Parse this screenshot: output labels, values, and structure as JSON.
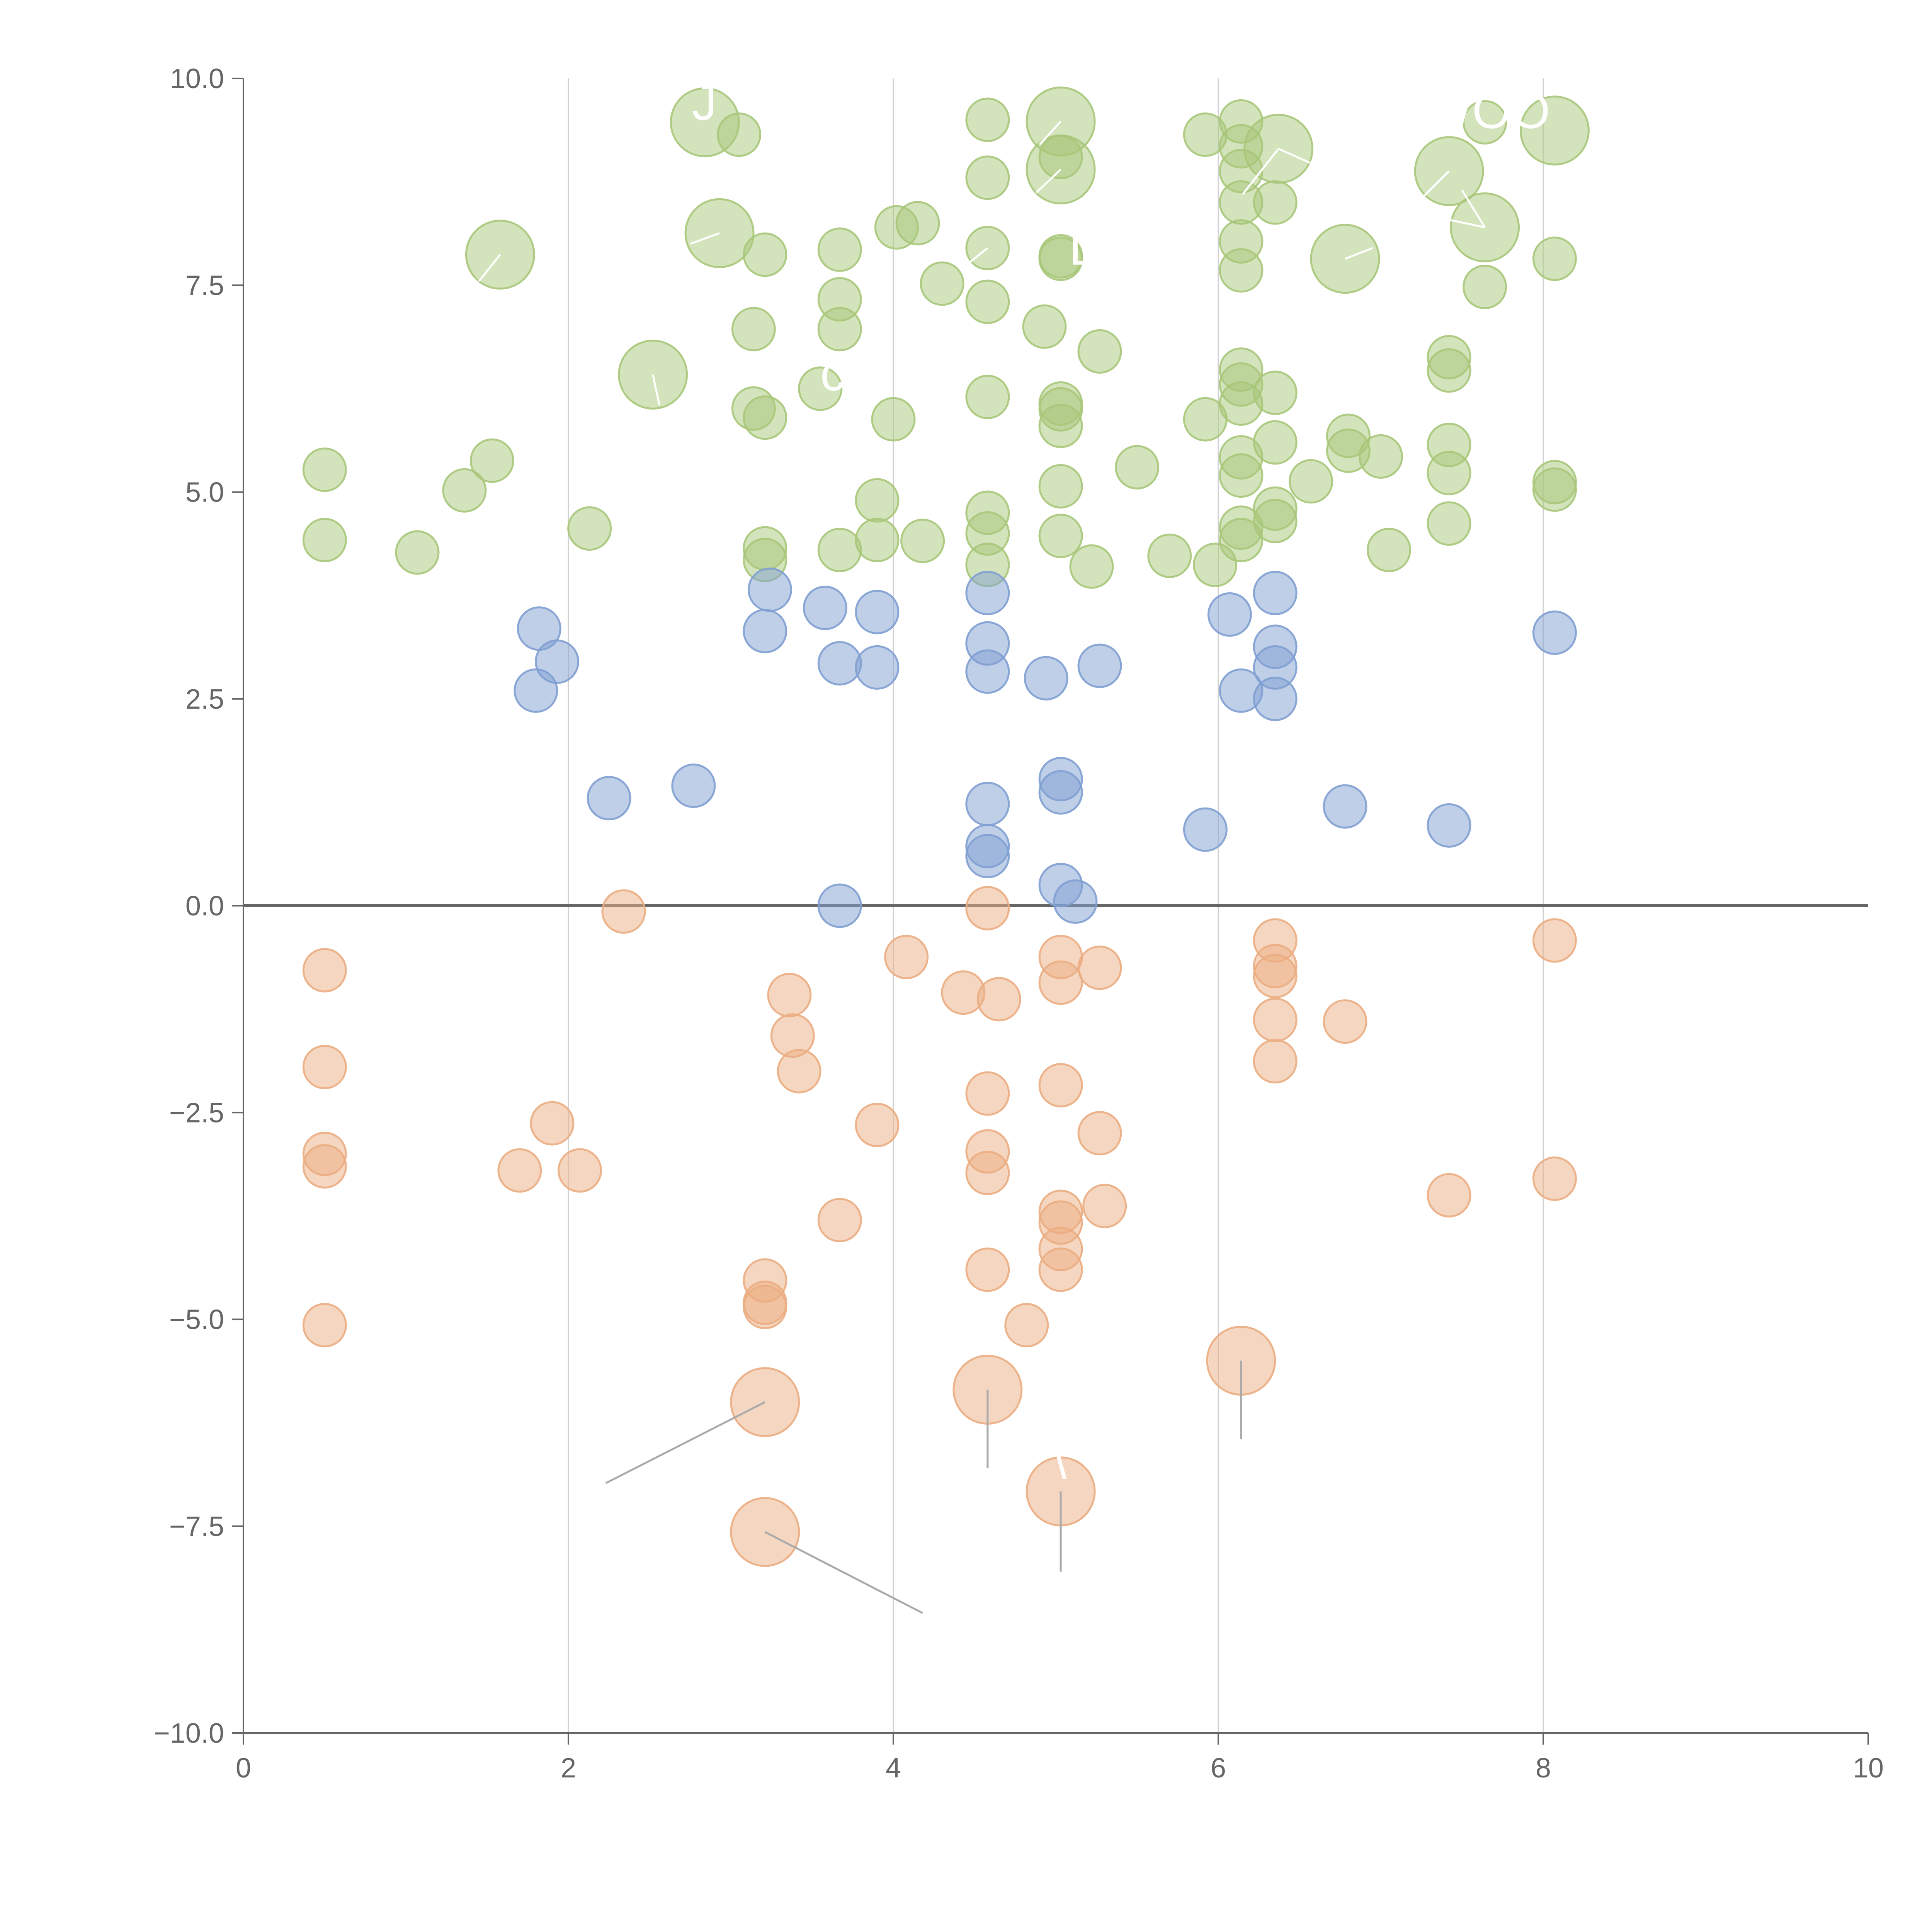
{
  "chart_data": {
    "type": "scatter",
    "title": "",
    "xlabel": "",
    "ylabel": "",
    "xlim": [
      0,
      10
    ],
    "ylim": [
      -10,
      10
    ],
    "x_ticks": [
      "0",
      "2",
      "4",
      "6",
      "8",
      "10"
    ],
    "y_ticks": [
      "10.0",
      "7.5",
      "5.0",
      "2.5",
      "0.0",
      "−2.5",
      "−5.0",
      "−7.5",
      "−10.0"
    ],
    "grid": "vertical lines at x ticks",
    "reference_line": 0,
    "series": [
      {
        "color": "#a8c77a",
        "points": [
          [
            1.58,
            7.87,
            1.6
          ],
          [
            2.52,
            6.42,
            1.6
          ],
          [
            2.93,
            8.13,
            1.6
          ],
          [
            2.84,
            9.47,
            1.6
          ],
          [
            5.03,
            9.48,
            1.6
          ],
          [
            5.03,
            8.9,
            1.6
          ],
          [
            6.37,
            9.15,
            1.6
          ],
          [
            7.42,
            8.88,
            1.6
          ],
          [
            7.64,
            8.2,
            1.6
          ],
          [
            8.07,
            9.37,
            1.6
          ],
          [
            6.78,
            7.82,
            1.6
          ],
          [
            0.5,
            5.27,
            1
          ],
          [
            0.5,
            4.42,
            1
          ],
          [
            1.07,
            4.27,
            1
          ],
          [
            1.36,
            5.02,
            1
          ],
          [
            1.53,
            5.38,
            1
          ],
          [
            2.13,
            4.56,
            1
          ],
          [
            3.05,
            9.32,
            1
          ],
          [
            3.14,
            6.97,
            1
          ],
          [
            3.14,
            6.01,
            1
          ],
          [
            3.21,
            5.9,
            1
          ],
          [
            3.21,
            7.87,
            1
          ],
          [
            3.21,
            4.32,
            1
          ],
          [
            3.21,
            4.18,
            1
          ],
          [
            3.55,
            6.25,
            1
          ],
          [
            3.67,
            7.93,
            1
          ],
          [
            3.67,
            7.33,
            1
          ],
          [
            3.67,
            6.97,
            1
          ],
          [
            3.67,
            4.3,
            1
          ],
          [
            3.9,
            4.9,
            1
          ],
          [
            3.9,
            4.42,
            1
          ],
          [
            4.0,
            5.88,
            1
          ],
          [
            4.02,
            8.2,
            1
          ],
          [
            4.15,
            8.25,
            1
          ],
          [
            4.18,
            4.41,
            1
          ],
          [
            4.3,
            7.52,
            1
          ],
          [
            4.58,
            9.5,
            1
          ],
          [
            4.58,
            8.8,
            1
          ],
          [
            4.58,
            7.95,
            1
          ],
          [
            4.58,
            7.3,
            1
          ],
          [
            4.58,
            6.15,
            1
          ],
          [
            4.58,
            4.75,
            1
          ],
          [
            4.58,
            4.5,
            1
          ],
          [
            4.58,
            4.12,
            1
          ],
          [
            4.93,
            7.0,
            1
          ],
          [
            5.03,
            7.85,
            1
          ],
          [
            5.03,
            7.82,
            1
          ],
          [
            5.03,
            6.07,
            1
          ],
          [
            5.03,
            6.0,
            1
          ],
          [
            5.03,
            5.8,
            1
          ],
          [
            5.03,
            5.07,
            1
          ],
          [
            5.03,
            4.47,
            1
          ],
          [
            5.03,
            9.05,
            1
          ],
          [
            5.22,
            4.1,
            1
          ],
          [
            5.27,
            6.7,
            1
          ],
          [
            5.5,
            5.3,
            1
          ],
          [
            5.7,
            4.23,
            1
          ],
          [
            5.92,
            5.88,
            1
          ],
          [
            5.92,
            9.32,
            1
          ],
          [
            5.98,
            4.12,
            1
          ],
          [
            6.14,
            9.48,
            1
          ],
          [
            6.14,
            9.18,
            1
          ],
          [
            6.14,
            8.88,
            1
          ],
          [
            6.14,
            8.5,
            1
          ],
          [
            6.14,
            8.03,
            1
          ],
          [
            6.14,
            7.68,
            1
          ],
          [
            6.14,
            6.48,
            1
          ],
          [
            6.14,
            6.3,
            1
          ],
          [
            6.14,
            6.07,
            1
          ],
          [
            6.14,
            5.42,
            1
          ],
          [
            6.14,
            5.2,
            1
          ],
          [
            6.14,
            4.57,
            1
          ],
          [
            6.14,
            4.42,
            1
          ],
          [
            6.35,
            8.5,
            1
          ],
          [
            6.35,
            6.2,
            1
          ],
          [
            6.35,
            5.6,
            1
          ],
          [
            6.35,
            4.8,
            1
          ],
          [
            6.35,
            4.65,
            1
          ],
          [
            6.57,
            5.13,
            1
          ],
          [
            6.8,
            5.68,
            1
          ],
          [
            6.8,
            5.5,
            1
          ],
          [
            7.0,
            5.43,
            1
          ],
          [
            7.05,
            4.3,
            1
          ],
          [
            7.42,
            6.63,
            1
          ],
          [
            7.42,
            6.47,
            1
          ],
          [
            7.42,
            5.57,
            1
          ],
          [
            7.42,
            5.23,
            1
          ],
          [
            7.42,
            4.62,
            1
          ],
          [
            7.64,
            7.48,
            1
          ],
          [
            7.64,
            9.47,
            1
          ],
          [
            8.07,
            7.82,
            1
          ],
          [
            8.07,
            5.12,
            1
          ],
          [
            8.07,
            5.03,
            1
          ]
        ]
      },
      {
        "color": "#7f9fd1",
        "points": [
          [
            1.82,
            3.35,
            1
          ],
          [
            1.8,
            2.6,
            1
          ],
          [
            1.93,
            2.95,
            1
          ],
          [
            2.25,
            1.3,
            1
          ],
          [
            2.77,
            1.45,
            1
          ],
          [
            3.21,
            3.32,
            1
          ],
          [
            3.24,
            3.82,
            1
          ],
          [
            3.58,
            3.6,
            1
          ],
          [
            3.67,
            2.93,
            1
          ],
          [
            3.67,
            0.0,
            1
          ],
          [
            3.9,
            3.55,
            1
          ],
          [
            3.9,
            2.88,
            1
          ],
          [
            4.58,
            3.78,
            1
          ],
          [
            4.58,
            3.17,
            1
          ],
          [
            4.58,
            2.83,
            1
          ],
          [
            4.58,
            1.23,
            1
          ],
          [
            4.58,
            0.72,
            1
          ],
          [
            4.58,
            0.6,
            1
          ],
          [
            4.94,
            2.75,
            1
          ],
          [
            5.03,
            1.53,
            1
          ],
          [
            5.03,
            1.37,
            1
          ],
          [
            5.03,
            0.25,
            1
          ],
          [
            5.12,
            0.05,
            1
          ],
          [
            5.27,
            2.9,
            1
          ],
          [
            5.92,
            0.92,
            1
          ],
          [
            6.07,
            3.52,
            1
          ],
          [
            6.14,
            2.6,
            1
          ],
          [
            6.35,
            3.78,
            1
          ],
          [
            6.35,
            3.13,
            1
          ],
          [
            6.35,
            2.88,
            1
          ],
          [
            6.35,
            2.5,
            1
          ],
          [
            6.78,
            1.2,
            1
          ],
          [
            7.42,
            0.97,
            1
          ],
          [
            8.07,
            3.3,
            1
          ]
        ]
      },
      {
        "color": "#ebad82",
        "points": [
          [
            3.21,
            -6.0,
            1.6
          ],
          [
            3.21,
            -7.57,
            1.6
          ],
          [
            4.58,
            -5.85,
            1.6
          ],
          [
            5.03,
            -7.08,
            1.6
          ],
          [
            6.14,
            -5.5,
            1.6
          ],
          [
            0.5,
            -0.78,
            1
          ],
          [
            0.5,
            -1.95,
            1
          ],
          [
            0.5,
            -3.0,
            1
          ],
          [
            0.5,
            -3.15,
            1
          ],
          [
            0.5,
            -5.07,
            1
          ],
          [
            1.7,
            -3.2,
            1
          ],
          [
            1.9,
            -2.63,
            1
          ],
          [
            2.07,
            -3.2,
            1
          ],
          [
            2.34,
            -0.07,
            1
          ],
          [
            3.21,
            -4.53,
            1
          ],
          [
            3.21,
            -4.8,
            1
          ],
          [
            3.21,
            -4.85,
            1
          ],
          [
            3.36,
            -1.08,
            1
          ],
          [
            3.38,
            -1.57,
            1
          ],
          [
            3.42,
            -2.0,
            1
          ],
          [
            3.67,
            -3.8,
            1
          ],
          [
            3.9,
            -2.65,
            1
          ],
          [
            4.08,
            -0.62,
            1
          ],
          [
            4.43,
            -1.05,
            1
          ],
          [
            4.58,
            -0.03,
            1
          ],
          [
            4.58,
            -2.27,
            1
          ],
          [
            4.58,
            -2.97,
            1
          ],
          [
            4.58,
            -3.23,
            1
          ],
          [
            4.58,
            -4.4,
            1
          ],
          [
            4.65,
            -1.13,
            1
          ],
          [
            4.82,
            -5.07,
            1
          ],
          [
            5.03,
            -0.62,
            1
          ],
          [
            5.03,
            -0.93,
            1
          ],
          [
            5.03,
            -2.17,
            1
          ],
          [
            5.03,
            -3.7,
            1
          ],
          [
            5.03,
            -3.83,
            1
          ],
          [
            5.03,
            -4.15,
            1
          ],
          [
            5.03,
            -4.4,
            1
          ],
          [
            5.27,
            -0.75,
            1
          ],
          [
            5.27,
            -2.75,
            1
          ],
          [
            5.3,
            -3.63,
            1
          ],
          [
            6.35,
            -0.42,
            1
          ],
          [
            6.35,
            -0.73,
            1
          ],
          [
            6.35,
            -0.85,
            1
          ],
          [
            6.35,
            -1.38,
            1
          ],
          [
            6.35,
            -1.88,
            1
          ],
          [
            6.78,
            -1.4,
            1
          ],
          [
            7.42,
            -3.5,
            1
          ],
          [
            8.07,
            -0.42,
            1
          ],
          [
            8.07,
            -3.3,
            1
          ]
        ]
      }
    ],
    "annotations": [
      {
        "text": "J",
        "x": 2.76,
        "y": 9.5
      },
      {
        "text": "WOO",
        "x": 7.27,
        "y": 9.4
      },
      {
        "text": "\\",
        "x": 4.98,
        "y": -6.92
      },
      {
        "text": "c",
        "x": 3.55,
        "y": 6.23
      },
      {
        "text": "L",
        "x": 5.08,
        "y": 7.75
      }
    ],
    "leader_lines": [
      {
        "color": "white",
        "from": [
          1.58,
          7.87
        ],
        "to": [
          1.45,
          7.55
        ]
      },
      {
        "color": "white",
        "from": [
          2.93,
          8.13
        ],
        "to": [
          2.75,
          8.0
        ]
      },
      {
        "color": "white",
        "from": [
          2.52,
          6.42
        ],
        "to": [
          2.56,
          6.05
        ]
      },
      {
        "color": "white",
        "from": [
          5.03,
          9.48
        ],
        "to": [
          4.9,
          9.2
        ]
      },
      {
        "color": "white",
        "from": [
          5.03,
          8.9
        ],
        "to": [
          4.88,
          8.62
        ]
      },
      {
        "color": "white",
        "from": [
          6.37,
          9.15
        ],
        "to": [
          6.6,
          8.95
        ]
      },
      {
        "color": "white",
        "from": [
          6.37,
          9.15
        ],
        "to": [
          6.15,
          8.6
        ]
      },
      {
        "color": "white",
        "from": [
          7.42,
          8.88
        ],
        "to": [
          7.25,
          8.55
        ]
      },
      {
        "color": "white",
        "from": [
          7.64,
          8.2
        ],
        "to": [
          7.4,
          8.3
        ]
      },
      {
        "color": "white",
        "from": [
          7.64,
          8.2
        ],
        "to": [
          7.5,
          8.65
        ]
      },
      {
        "color": "white",
        "from": [
          6.78,
          7.82
        ],
        "to": [
          6.95,
          7.95
        ]
      },
      {
        "color": "white",
        "from": [
          4.58,
          7.95
        ],
        "to": [
          4.42,
          7.7
        ]
      },
      {
        "color": "grey",
        "from": [
          3.21,
          -6.0
        ],
        "to": [
          2.23,
          -6.98
        ]
      },
      {
        "color": "grey",
        "from": [
          3.21,
          -7.57
        ],
        "to": [
          4.18,
          -8.55
        ]
      },
      {
        "color": "grey",
        "from": [
          4.58,
          -5.85
        ],
        "to": [
          4.58,
          -6.8
        ]
      },
      {
        "color": "grey",
        "from": [
          5.03,
          -7.08
        ],
        "to": [
          5.03,
          -8.05
        ]
      },
      {
        "color": "grey",
        "from": [
          6.14,
          -5.5
        ],
        "to": [
          6.14,
          -6.45
        ]
      }
    ]
  }
}
